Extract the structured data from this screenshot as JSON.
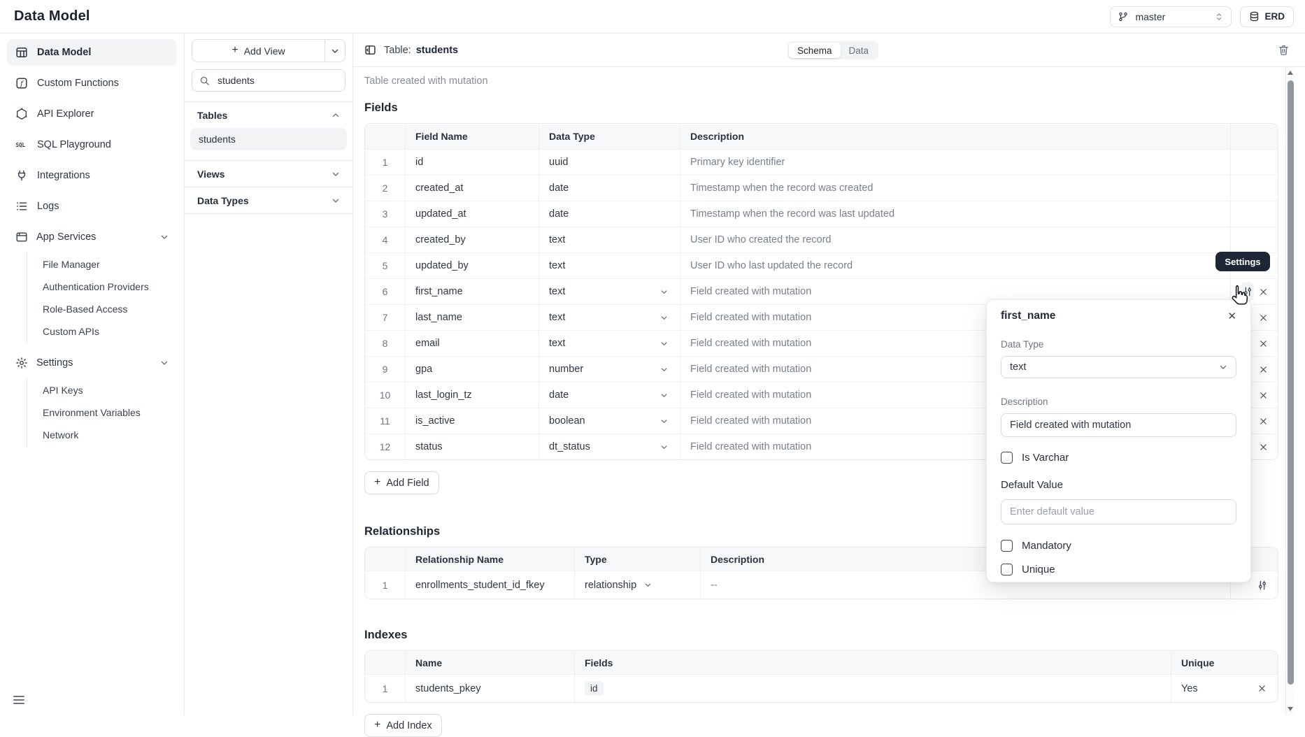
{
  "topbar": {
    "title": "Data Model",
    "branch": "master",
    "erd_label": "ERD"
  },
  "sidebar": {
    "items": [
      {
        "label": "Data Model",
        "selected": true
      },
      {
        "label": "Custom Functions"
      },
      {
        "label": "API Explorer"
      },
      {
        "label": "SQL Playground"
      },
      {
        "label": "Integrations"
      },
      {
        "label": "Logs"
      }
    ],
    "groups": [
      {
        "label": "App Services",
        "children": [
          "File Manager",
          "Authentication Providers",
          "Role-Based Access",
          "Custom APIs"
        ]
      },
      {
        "label": "Settings",
        "children": [
          "API Keys",
          "Environment Variables",
          "Network"
        ]
      }
    ]
  },
  "tables_panel": {
    "add_view_label": "Add View",
    "search_value": "students",
    "sections": [
      {
        "label": "Tables",
        "items": [
          "students"
        ]
      },
      {
        "label": "Views"
      },
      {
        "label": "Data Types"
      }
    ]
  },
  "main": {
    "table_label": "Table:",
    "table_name": "students",
    "subtitle": "Table created with mutation",
    "toggle": {
      "schema": "Schema",
      "data": "Data",
      "selected": "Schema"
    },
    "fields": {
      "heading": "Fields",
      "columns": [
        "Field Name",
        "Data Type",
        "Description"
      ],
      "add_label": "Add Field",
      "rows": [
        {
          "num": "1",
          "name": "id",
          "type": "uuid",
          "description": "Primary key identifier"
        },
        {
          "num": "2",
          "name": "created_at",
          "type": "date",
          "description": "Timestamp when the record was created"
        },
        {
          "num": "3",
          "name": "updated_at",
          "type": "date",
          "description": "Timestamp when the record was last updated"
        },
        {
          "num": "4",
          "name": "created_by",
          "type": "text",
          "description": "User ID who created the record"
        },
        {
          "num": "5",
          "name": "updated_by",
          "type": "text",
          "description": "User ID who last updated the record"
        },
        {
          "num": "6",
          "name": "first_name",
          "type": "text",
          "description": "Field created with mutation"
        },
        {
          "num": "7",
          "name": "last_name",
          "type": "text",
          "description": "Field created with mutation"
        },
        {
          "num": "8",
          "name": "email",
          "type": "text",
          "description": "Field created with mutation"
        },
        {
          "num": "9",
          "name": "gpa",
          "type": "number",
          "description": "Field created with mutation"
        },
        {
          "num": "10",
          "name": "last_login_tz",
          "type": "date",
          "description": "Field created with mutation"
        },
        {
          "num": "11",
          "name": "is_active",
          "type": "boolean",
          "description": "Field created with mutation"
        },
        {
          "num": "12",
          "name": "status",
          "type": "dt_status",
          "description": "Field created with mutation"
        }
      ]
    },
    "relationships": {
      "heading": "Relationships",
      "columns": [
        "Relationship Name",
        "Type",
        "Description"
      ],
      "rows": [
        {
          "num": "1",
          "name": "enrollments_student_id_fkey",
          "type": "relationship",
          "description": "--"
        }
      ]
    },
    "indexes": {
      "heading": "Indexes",
      "columns": [
        "Name",
        "Fields",
        "Unique"
      ],
      "add_label": "Add Index",
      "rows": [
        {
          "num": "1",
          "name": "students_pkey",
          "fields": [
            "id"
          ],
          "unique": "Yes"
        }
      ]
    }
  },
  "popover": {
    "title": "first_name",
    "data_type_label": "Data Type",
    "data_type_value": "text",
    "description_label": "Description",
    "description_value": "Field created with mutation",
    "is_varchar_label": "Is Varchar",
    "default_value_label": "Default Value",
    "default_value_placeholder": "Enter default value",
    "mandatory_label": "Mandatory",
    "unique_label": "Unique"
  },
  "tooltip": {
    "label": "Settings"
  },
  "icons": {
    "plus": "+",
    "close": "✕"
  },
  "colors": {
    "tooltip_bg": "#1e2534",
    "selected_bg": "#f1f3f5",
    "border": "#e8eaee",
    "text_primary": "#2b3340",
    "text_secondary": "#78808e",
    "table_header_bg": "#f7f8fa"
  }
}
